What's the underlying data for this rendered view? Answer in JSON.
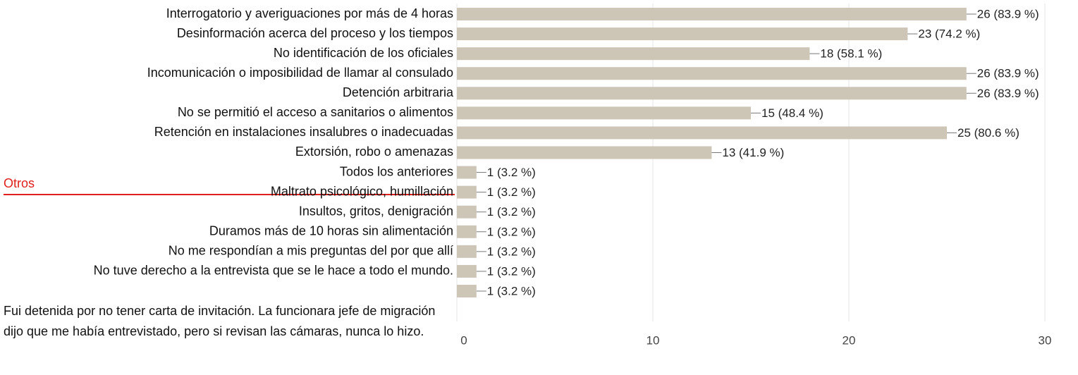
{
  "chart_data": {
    "type": "bar",
    "orientation": "horizontal",
    "annotation": "Otros",
    "categories": [
      "Interrogatorio y averiguaciones por más de 4 horas",
      "Desinformación acerca del proceso y los tiempos",
      "No identificación de los oficiales",
      "Incomunicación o imposibilidad de llamar al consulado",
      "Detención arbitraria",
      "No se permitió el acceso a sanitarios o alimentos",
      "Retención en instalaciones insalubres o inadecuadas",
      "Extorsión, robo o amenazas",
      "Todos los anteriores",
      "Maltrato psicológico, humillación",
      "Insultos, gritos, denigración",
      "Duramos más de 10 horas sin alimentación",
      "No me respondían a mis preguntas del por que allí",
      "No tuve derecho a la entrevista que se le hace a todo el mundo.",
      "Fui detenida por no tener carta de invitación. La funcionara jefe de migración dijo que me había entrevistado, pero si revisan las cámaras, nunca lo hizo."
    ],
    "values": [
      26,
      23,
      18,
      26,
      26,
      15,
      25,
      13,
      1,
      1,
      1,
      1,
      1,
      1,
      1
    ],
    "value_labels": [
      "26 (83.9 %)",
      "23 (74.2 %)",
      "18 (58.1 %)",
      "26 (83.9 %)",
      "26 (83.9 %)",
      "15 (48.4 %)",
      "25 (80.6 %)",
      "13 (41.9 %)",
      "1 (3.2 %)",
      "1 (3.2 %)",
      "1 (3.2 %)",
      "1 (3.2 %)",
      "1 (3.2 %)",
      "1 (3.2 %)",
      "1 (3.2 %)"
    ],
    "color": "#cdc5b6",
    "xlim": [
      0,
      30
    ],
    "xticks": [
      0,
      10,
      20,
      30
    ],
    "grid": true
  }
}
